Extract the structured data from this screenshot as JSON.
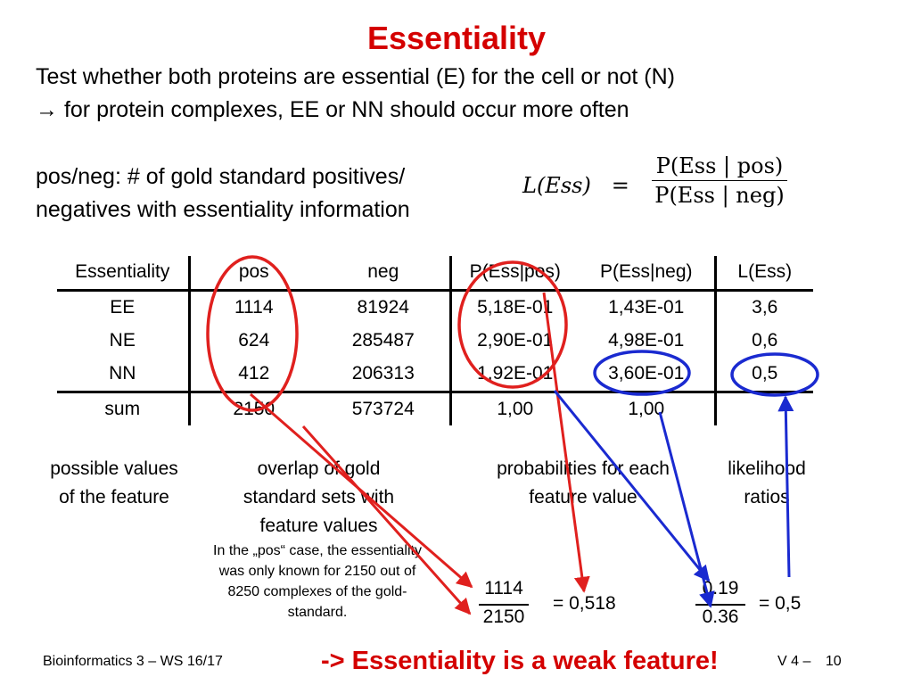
{
  "title": "Essentiality",
  "intro": {
    "line1": "Test whether both proteins are essential (E) for the cell or not (N)",
    "line2": "→ for protein complexes, EE or NN should occur more often"
  },
  "definition": {
    "line1": "pos/neg: # of gold standard positives/",
    "line2": "negatives with essentiality information"
  },
  "formula": {
    "lhs": "L(Ess)",
    "equals": "=",
    "numerator": "P(Ess | pos)",
    "denominator": "P(Ess | neg)"
  },
  "table": {
    "headers": [
      "Essentiality",
      "pos",
      "neg",
      "P(Ess|pos)",
      "P(Ess|neg)",
      "L(Ess)"
    ],
    "rows": [
      [
        "EE",
        "1114",
        "81924",
        "5,18E-01",
        "1,43E-01",
        "3,6"
      ],
      [
        "NE",
        "624",
        "285487",
        "2,90E-01",
        "4,98E-01",
        "0,6"
      ],
      [
        "NN",
        "412",
        "206313",
        "1,92E-01",
        "3,60E-01",
        "0,5"
      ],
      [
        "sum",
        "2150",
        "573724",
        "1,00",
        "1,00",
        ""
      ]
    ]
  },
  "captions": {
    "values": "possible values of the feature",
    "overlap": "overlap of gold standard sets with feature values",
    "probabilities": "probabilities for each feature value",
    "likelihood": "likelihood ratios"
  },
  "note": "In the „pos“ case, the essentiality was only known for 2150 out of 8250 complexes of the gold-standard.",
  "calc1": {
    "numerator": "1114",
    "denominator": "2150",
    "result": "= 0,518"
  },
  "calc2": {
    "numerator": "0.19",
    "denominator": "0.36",
    "result": "= 0,5"
  },
  "footer": {
    "course": "Bioinformatics 3 – WS 16/17",
    "conclusion": "-> Essentiality is a weak feature!",
    "lecture": "V 4 –",
    "page": "10"
  },
  "colors": {
    "title": "#d40000",
    "highlight_red": "#e0201e",
    "highlight_blue": "#1a2ad0"
  }
}
